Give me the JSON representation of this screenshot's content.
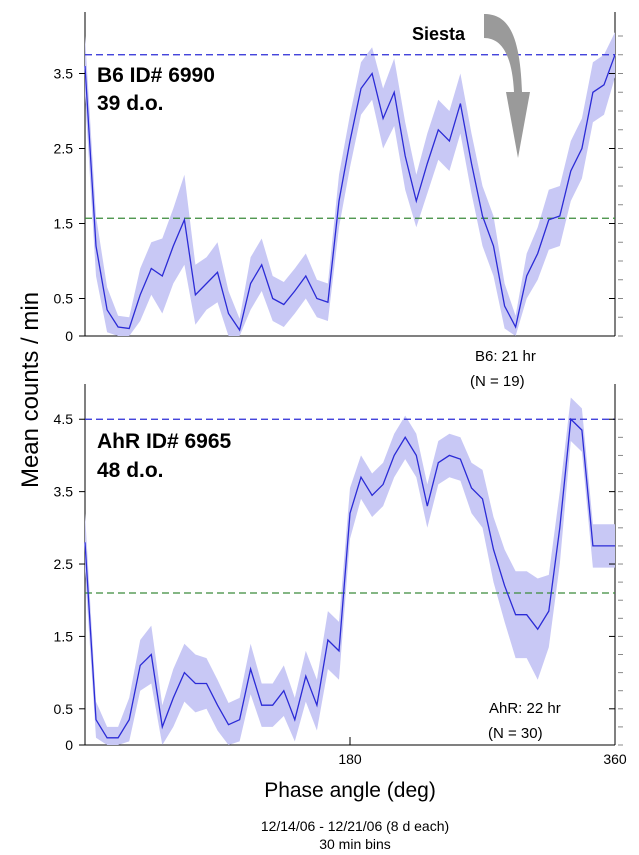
{
  "ylabel": "Mean counts / min",
  "xlabel": "Phase angle (deg)",
  "footnote": {
    "line1": "12/14/06 - 12/21/06  (8 d each)",
    "line2": "30 min bins"
  },
  "siesta_label": "Siesta",
  "colors": {
    "line": "#2b2bd6",
    "band": "#c8c8f5",
    "ref_blue": "#2b2bd6",
    "ref_green": "#3a8a3a",
    "arrow": "#9a9a9a"
  },
  "chart_data": [
    {
      "type": "line",
      "panel": "top",
      "title": "B6 ID# 6990",
      "subtitle": "39 d.o.",
      "caption_line1": "B6: 21 hr",
      "caption_line2": "(N = 19)",
      "xlim": [
        0,
        360
      ],
      "ylim": [
        0,
        4.0
      ],
      "yticks": [
        "0",
        "0.5",
        "1.5",
        "2.5",
        "3.5"
      ],
      "ytick_values": [
        0,
        0.5,
        1.5,
        2.5,
        3.5
      ],
      "xticks": [],
      "ref_lines": {
        "blue": 3.75,
        "green": 1.57
      },
      "x": [
        0,
        7.5,
        15,
        22.5,
        30,
        37.5,
        45,
        52.5,
        60,
        67.5,
        75,
        82.5,
        90,
        97.5,
        105,
        112.5,
        120,
        127.5,
        135,
        142.5,
        150,
        157.5,
        165,
        172.5,
        180,
        187.5,
        195,
        202.5,
        210,
        217.5,
        225,
        232.5,
        240,
        247.5,
        255,
        262.5,
        270,
        277.5,
        285,
        292.5,
        300,
        307.5,
        315,
        322.5,
        330,
        337.5,
        345,
        352.5,
        360
      ],
      "values": [
        3.6,
        1.2,
        0.35,
        0.12,
        0.1,
        0.55,
        0.9,
        0.8,
        1.2,
        1.55,
        0.55,
        0.7,
        0.85,
        0.3,
        0.08,
        0.7,
        0.95,
        0.5,
        0.42,
        0.6,
        0.8,
        0.5,
        0.45,
        1.8,
        2.6,
        3.3,
        3.5,
        2.9,
        3.25,
        2.4,
        1.8,
        2.3,
        2.75,
        2.6,
        3.1,
        2.3,
        1.6,
        1.2,
        0.4,
        0.12,
        0.8,
        1.1,
        1.55,
        1.6,
        2.2,
        2.5,
        3.25,
        3.35,
        3.75
      ],
      "band": [
        0.4,
        0.4,
        0.3,
        0.15,
        0.15,
        0.35,
        0.35,
        0.5,
        0.5,
        0.6,
        0.4,
        0.35,
        0.4,
        0.3,
        0.15,
        0.35,
        0.35,
        0.3,
        0.3,
        0.3,
        0.3,
        0.25,
        0.25,
        0.35,
        0.35,
        0.35,
        0.35,
        0.4,
        0.45,
        0.45,
        0.35,
        0.4,
        0.4,
        0.4,
        0.4,
        0.4,
        0.4,
        0.4,
        0.3,
        0.15,
        0.3,
        0.35,
        0.4,
        0.4,
        0.4,
        0.4,
        0.4,
        0.4,
        0.3
      ]
    },
    {
      "type": "line",
      "panel": "bottom",
      "title": "AhR ID# 6965",
      "subtitle": "48 d.o.",
      "caption_line1": "AhR: 22 hr",
      "caption_line2": "(N = 30)",
      "xlim": [
        0,
        360
      ],
      "ylim": [
        0,
        4.6
      ],
      "yticks": [
        "0",
        "0.5",
        "1.5",
        "2.5",
        "3.5",
        "4.5"
      ],
      "ytick_values": [
        0,
        0.5,
        1.5,
        2.5,
        3.5,
        4.5
      ],
      "xticks": [
        "180",
        "360"
      ],
      "xtick_values": [
        180,
        360
      ],
      "ref_lines": {
        "blue": 4.5,
        "green": 2.1
      },
      "x": [
        0,
        7.5,
        15,
        22.5,
        30,
        37.5,
        45,
        52.5,
        60,
        67.5,
        75,
        82.5,
        90,
        97.5,
        105,
        112.5,
        120,
        127.5,
        135,
        142.5,
        150,
        157.5,
        165,
        172.5,
        180,
        187.5,
        195,
        202.5,
        210,
        217.5,
        225,
        232.5,
        240,
        247.5,
        255,
        262.5,
        270,
        277.5,
        285,
        292.5,
        300,
        307.5,
        315,
        322.5,
        330,
        337.5,
        345,
        352.5,
        360
      ],
      "values": [
        2.8,
        0.35,
        0.1,
        0.1,
        0.35,
        1.1,
        1.25,
        0.25,
        0.65,
        1.0,
        0.85,
        0.85,
        0.55,
        0.28,
        0.35,
        1.05,
        0.55,
        0.55,
        0.75,
        0.35,
        0.95,
        0.55,
        1.45,
        1.3,
        3.2,
        3.7,
        3.45,
        3.6,
        4.0,
        4.25,
        4.0,
        3.3,
        3.9,
        4.0,
        3.95,
        3.55,
        3.4,
        2.7,
        2.2,
        1.8,
        1.8,
        1.6,
        1.85,
        3.0,
        4.5,
        4.35,
        2.75,
        2.75,
        2.75
      ],
      "band": [
        0.4,
        0.25,
        0.15,
        0.15,
        0.3,
        0.35,
        0.4,
        0.3,
        0.4,
        0.4,
        0.4,
        0.35,
        0.35,
        0.3,
        0.3,
        0.35,
        0.3,
        0.3,
        0.35,
        0.3,
        0.35,
        0.35,
        0.4,
        0.4,
        0.35,
        0.3,
        0.3,
        0.3,
        0.3,
        0.3,
        0.3,
        0.3,
        0.3,
        0.3,
        0.3,
        0.35,
        0.4,
        0.45,
        0.5,
        0.6,
        0.6,
        0.7,
        0.5,
        0.5,
        0.3,
        0.3,
        0.3,
        0.3,
        0.3
      ]
    }
  ]
}
